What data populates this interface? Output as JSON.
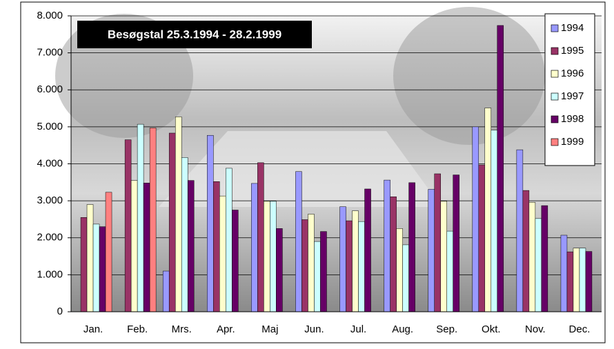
{
  "chart_data": {
    "type": "bar",
    "title": "Besøgstal 25.3.1994 - 28.2.1999",
    "categories": [
      "Jan.",
      "Feb.",
      "Mrs.",
      "Apr.",
      "Maj",
      "Jun.",
      "Jul.",
      "Aug.",
      "Sep.",
      "Okt.",
      "Nov.",
      "Dec."
    ],
    "series": [
      {
        "name": "1994",
        "color": "#9999ff",
        "values": [
          null,
          null,
          1100,
          4770,
          3470,
          3790,
          2840,
          3560,
          3310,
          5000,
          4380,
          2070
        ]
      },
      {
        "name": "1995",
        "color": "#993366",
        "values": [
          2550,
          4650,
          4830,
          3520,
          4030,
          2490,
          2460,
          3110,
          3730,
          3970,
          3280,
          1620
        ]
      },
      {
        "name": "1996",
        "color": "#ffffcc",
        "values": [
          2900,
          3550,
          5270,
          3130,
          2990,
          2640,
          2730,
          2250,
          2990,
          5510,
          2960,
          1720
        ]
      },
      {
        "name": "1997",
        "color": "#ccffff",
        "values": [
          2370,
          5070,
          4170,
          3880,
          2990,
          1900,
          2440,
          1810,
          2180,
          4910,
          2520,
          1720
        ]
      },
      {
        "name": "1998",
        "color": "#660066",
        "values": [
          2300,
          3480,
          3550,
          2750,
          2250,
          2170,
          3320,
          3490,
          3700,
          7740,
          2870,
          1630
        ]
      },
      {
        "name": "1999",
        "color": "#ff8080",
        "values": [
          3230,
          4970,
          null,
          null,
          null,
          null,
          null,
          null,
          null,
          null,
          null,
          null
        ]
      }
    ],
    "ylim": [
      0,
      8000
    ],
    "yticks": [
      0,
      {
        "value": 1000,
        "label": "1.000"
      },
      {
        "value": 2000,
        "label": "2.000"
      },
      {
        "value": 3000,
        "label": "3.000"
      },
      {
        "value": 4000,
        "label": "4.000"
      },
      {
        "value": 5000,
        "label": "5.000"
      },
      {
        "value": 6000,
        "label": "6.000"
      },
      {
        "value": 7000,
        "label": "7.000"
      },
      {
        "value": 8000,
        "label": "8.000"
      }
    ],
    "grid": true,
    "legend": "right"
  }
}
